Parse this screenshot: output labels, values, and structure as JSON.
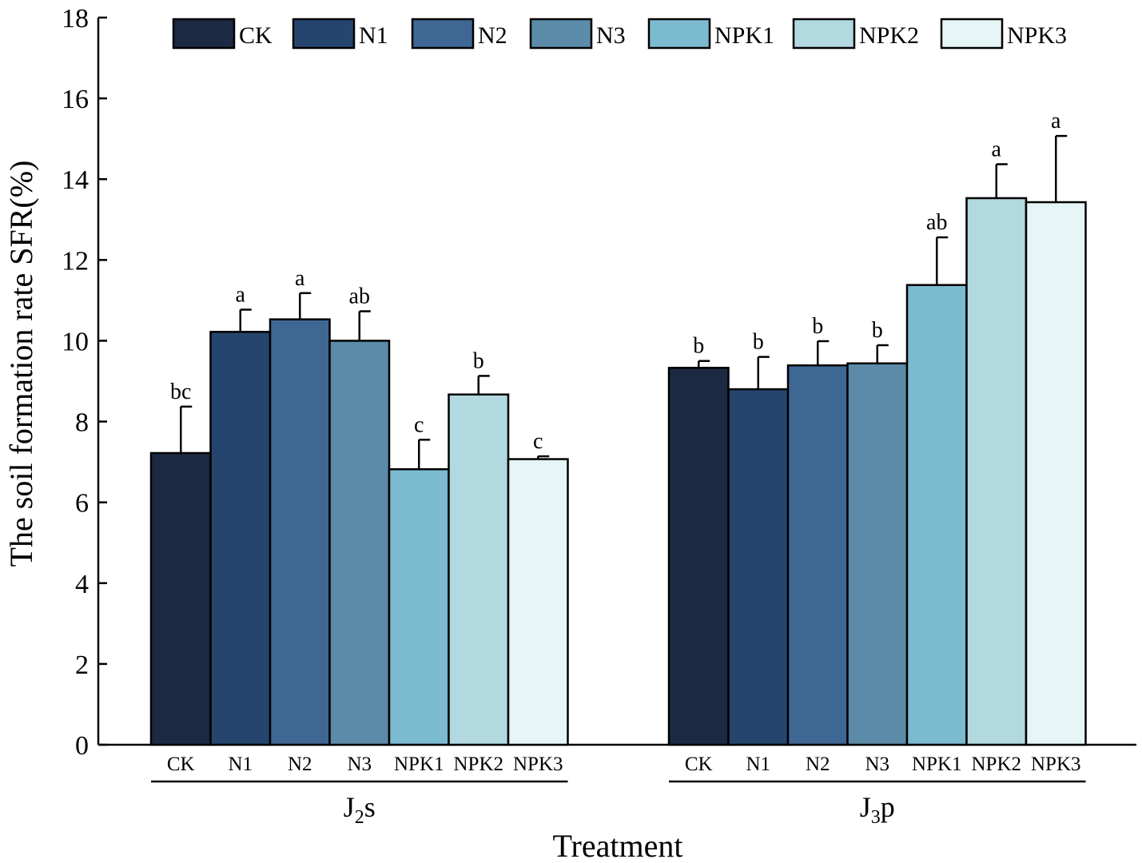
{
  "chart_data": {
    "type": "bar",
    "ylabel": "The soil formation rate  SFR(%)",
    "xlabel": "Treatment",
    "ylim": [
      0,
      18
    ],
    "yticks": [
      0,
      2,
      4,
      6,
      8,
      10,
      12,
      14,
      16,
      18
    ],
    "legend": {
      "position": "top",
      "entries": [
        "CK",
        "N1",
        "N2",
        "N3",
        "NPK1",
        "NPK2",
        "NPK3"
      ]
    },
    "colors": [
      "#1b2a42",
      "#26456e",
      "#3f6794",
      "#5b8ba8",
      "#7cbad0",
      "#b1d9df",
      "#e6f5f6"
    ],
    "groups": [
      {
        "label_main": "J",
        "label_sub": "2",
        "label_suffix": "s",
        "categories": [
          "CK",
          "N1",
          "N2",
          "N3",
          "NPK1",
          "NPK2",
          "NPK3"
        ],
        "values": [
          7.22,
          10.22,
          10.53,
          10.0,
          6.82,
          8.67,
          7.07
        ],
        "errors": [
          1.15,
          0.55,
          0.65,
          0.73,
          0.73,
          0.46,
          0.07
        ],
        "significance": [
          "bc",
          "a",
          "a",
          "ab",
          "c",
          "b",
          "c"
        ]
      },
      {
        "label_main": "J",
        "label_sub": "3",
        "label_suffix": "p",
        "categories": [
          "CK",
          "N1",
          "N2",
          "N3",
          "NPK1",
          "NPK2",
          "NPK3"
        ],
        "values": [
          9.33,
          8.8,
          9.39,
          9.44,
          11.38,
          13.53,
          13.43
        ],
        "errors": [
          0.17,
          0.8,
          0.6,
          0.45,
          1.18,
          0.84,
          1.64
        ],
        "significance": [
          "b",
          "b",
          "b",
          "b",
          "ab",
          "a",
          "a"
        ]
      }
    ]
  }
}
